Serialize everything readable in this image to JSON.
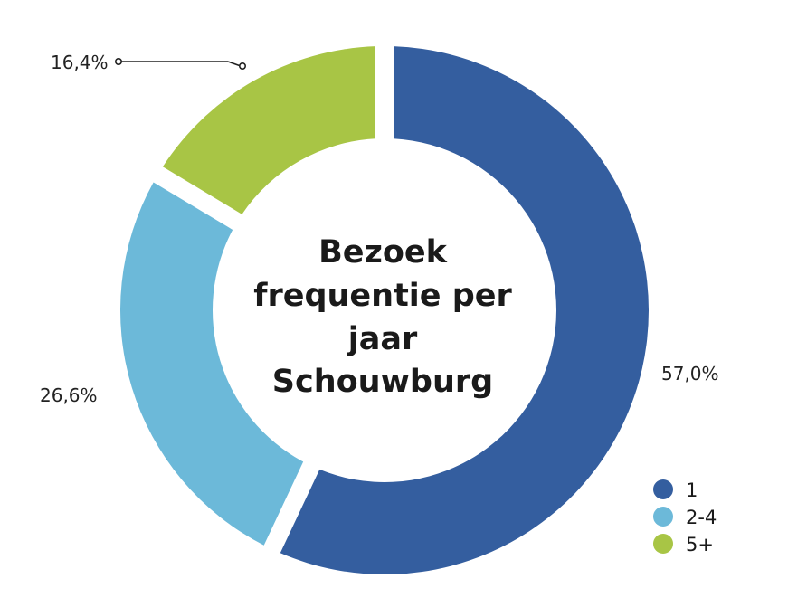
{
  "chart_data": {
    "type": "pie",
    "variant": "donut",
    "title_lines": [
      "Bezoek",
      "frequentie per",
      "jaar",
      "Schouwburg"
    ],
    "slices": [
      {
        "label": "1",
        "value": 57.0,
        "display": "57,0%",
        "color": "#345e9f"
      },
      {
        "label": "2-4",
        "value": 26.6,
        "display": "26,6%",
        "color": "#6cb9d9"
      },
      {
        "label": "5+",
        "value": 16.4,
        "display": "16,4%",
        "color": "#a8c545"
      }
    ],
    "legend": {
      "position": "bottom-right",
      "items": [
        "1",
        "2-4",
        "5+"
      ]
    }
  }
}
